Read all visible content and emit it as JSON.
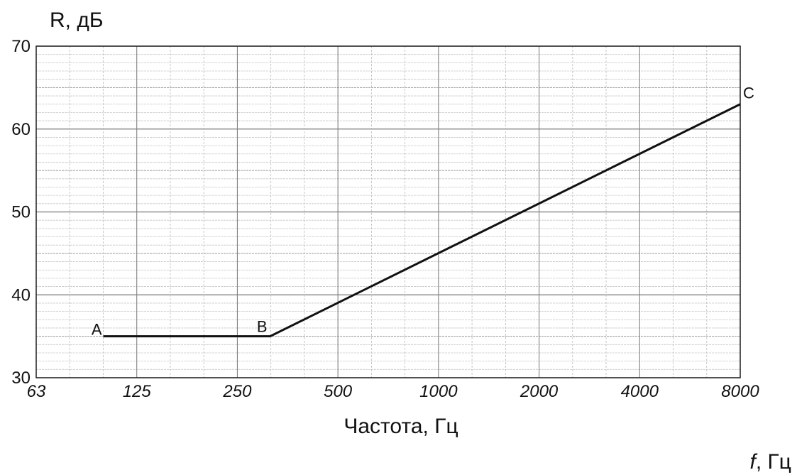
{
  "chart_data": {
    "type": "line",
    "ylabel": "R, дБ",
    "xlabel": "Частота, Гц",
    "xlabel_secondary": "f, Гц",
    "x_scale": "log2",
    "xlim": [
      63,
      8000
    ],
    "ylim": [
      30,
      70
    ],
    "x_ticks": [
      "63",
      "125",
      "250",
      "500",
      "1000",
      "2000",
      "4000",
      "8000"
    ],
    "y_ticks": [
      "30",
      "40",
      "50",
      "60",
      "70"
    ],
    "grid": true,
    "series": [
      {
        "points": [
          {
            "label": "A",
            "x": 100,
            "y": 35
          },
          {
            "label": "B",
            "x": 315,
            "y": 35
          },
          {
            "label": "C",
            "x": 8000,
            "y": 63
          }
        ]
      }
    ]
  }
}
